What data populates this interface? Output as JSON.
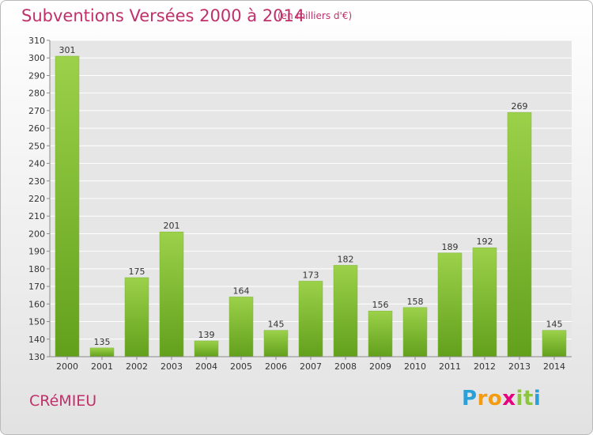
{
  "title": "Subventions Versées 2000 à 2014",
  "subtitle": "(en milliers d'€)",
  "commune": "CRéMIEU",
  "brand": {
    "letters": [
      "P",
      "r",
      "o",
      "x",
      "i",
      "t",
      "i"
    ],
    "colors": [
      "#2aa0d8",
      "#f39c12",
      "#f39c12",
      "#e6007e",
      "#8cc63f",
      "#8cc63f",
      "#2aa0d8"
    ]
  },
  "colors": {
    "bar_light": "#9cd14a",
    "bar_dark": "#62a01c",
    "title": "#c0306a"
  },
  "chart_data": {
    "type": "bar",
    "title": "Subventions Versées 2000 à 2014",
    "subtitle": "(en milliers d'€)",
    "categories": [
      "2000",
      "2001",
      "2002",
      "2003",
      "2004",
      "2005",
      "2006",
      "2007",
      "2008",
      "2009",
      "2010",
      "2011",
      "2012",
      "2013",
      "2014"
    ],
    "values": [
      301,
      135,
      175,
      201,
      139,
      164,
      145,
      173,
      182,
      156,
      158,
      189,
      192,
      269,
      145
    ],
    "ylim": [
      130,
      310
    ],
    "yticks": [
      130,
      140,
      150,
      160,
      170,
      180,
      190,
      200,
      210,
      220,
      230,
      240,
      250,
      260,
      270,
      280,
      290,
      300,
      310
    ],
    "grid": true,
    "data_labels": true
  }
}
